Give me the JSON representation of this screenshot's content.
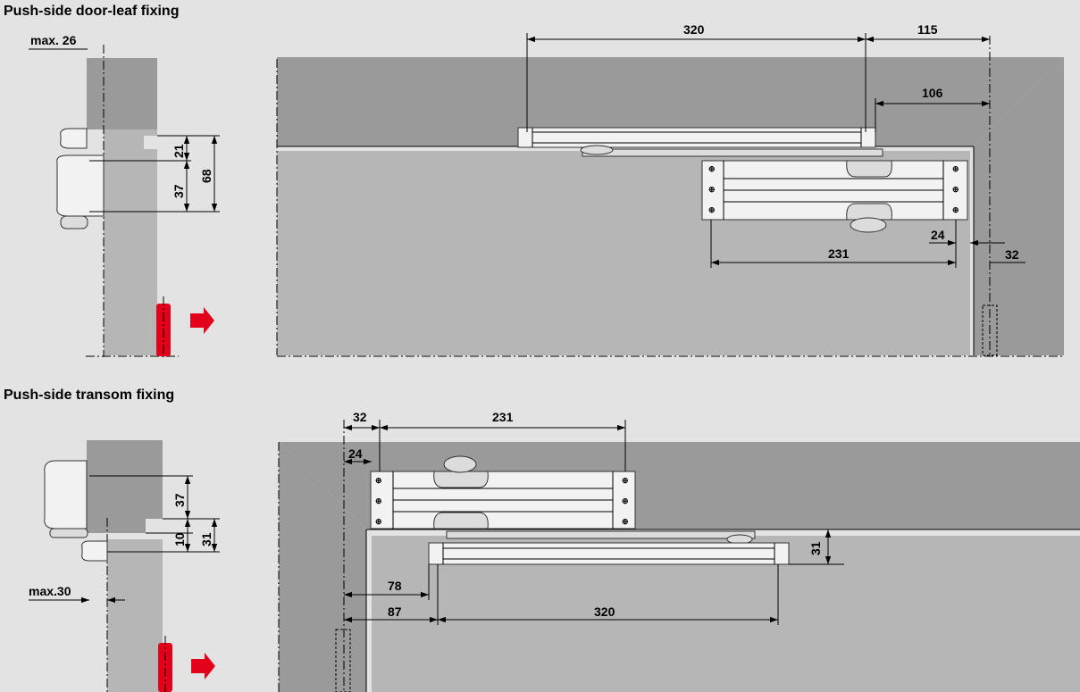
{
  "titles": {
    "door_leaf": "Push-side door-leaf fixing",
    "transom": "Push-side transom fixing"
  },
  "colors": {
    "background": "#e3e3e3",
    "frame": "#9a9a9a",
    "door": "#b6b6b6",
    "accent_red": "#e2001a"
  },
  "door_leaf": {
    "side": {
      "max_label": "max. 26",
      "d21": "21",
      "d37": "37",
      "d68": "68"
    },
    "front": {
      "d320": "320",
      "d115": "115",
      "d106": "106",
      "d24": "24",
      "d231": "231",
      "d32": "32"
    }
  },
  "transom": {
    "side": {
      "d37": "37",
      "d10": "10",
      "d31": "31",
      "max_label": "max.30"
    },
    "front": {
      "d32": "32",
      "d231": "231",
      "d24": "24",
      "d31": "31",
      "d78": "78",
      "d87": "87",
      "d320": "320"
    }
  }
}
